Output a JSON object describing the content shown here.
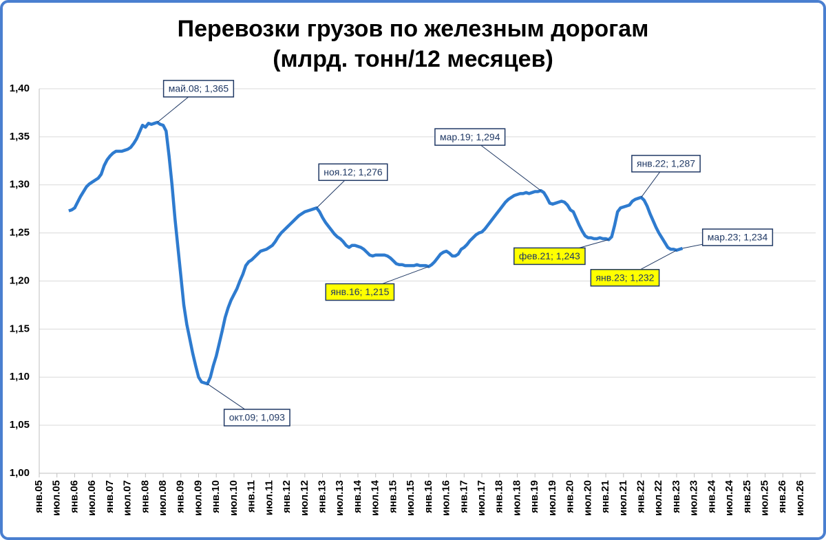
{
  "chart_data": {
    "type": "line",
    "title": "Перевозки грузов по железным дорогам",
    "subtitle": "(млрд. тонн/12 месяцев)",
    "categories": [
      "янв.05",
      null,
      null,
      null,
      null,
      null,
      "июл.05",
      null,
      null,
      null,
      null,
      null,
      "янв.06",
      null,
      null,
      null,
      null,
      null,
      "июл.06",
      null,
      null,
      null,
      null,
      null,
      "янв.07",
      null,
      null,
      null,
      null,
      null,
      "июл.07",
      null,
      null,
      null,
      null,
      null,
      "янв.08",
      null,
      null,
      null,
      null,
      null,
      "июл.08",
      null,
      null,
      null,
      null,
      null,
      "янв.09",
      null,
      null,
      null,
      null,
      null,
      "июл.09",
      null,
      null,
      null,
      null,
      null,
      "янв.10",
      null,
      null,
      null,
      null,
      null,
      "июл.10",
      null,
      null,
      null,
      null,
      null,
      "янв.11",
      null,
      null,
      null,
      null,
      null,
      "июл.11",
      null,
      null,
      null,
      null,
      null,
      "янв.12",
      null,
      null,
      null,
      null,
      null,
      "июл.12",
      null,
      null,
      null,
      null,
      null,
      "янв.13",
      null,
      null,
      null,
      null,
      null,
      "июл.13",
      null,
      null,
      null,
      null,
      null,
      "янв.14",
      null,
      null,
      null,
      null,
      null,
      "июл.14",
      null,
      null,
      null,
      null,
      null,
      "янв.15",
      null,
      null,
      null,
      null,
      null,
      "июл.15",
      null,
      null,
      null,
      null,
      null,
      "янв.16",
      null,
      null,
      null,
      null,
      null,
      "июл.16",
      null,
      null,
      null,
      null,
      null,
      "янв.17",
      null,
      null,
      null,
      null,
      null,
      "июл.17",
      null,
      null,
      null,
      null,
      null,
      "янв.18",
      null,
      null,
      null,
      null,
      null,
      "июл.18",
      null,
      null,
      null,
      null,
      null,
      "янв.19",
      null,
      null,
      null,
      null,
      null,
      "июл.19",
      null,
      null,
      null,
      null,
      null,
      "янв.20",
      null,
      null,
      null,
      null,
      null,
      "июл.20",
      null,
      null,
      null,
      null,
      null,
      "янв.21",
      null,
      null,
      null,
      null,
      null,
      "июл.21",
      null,
      null,
      null,
      null,
      null,
      "янв.22",
      null,
      null,
      null,
      null,
      null,
      "июл.22",
      null,
      null,
      null,
      null,
      null,
      "янв.23",
      null,
      null,
      null,
      null,
      null,
      "июл.23",
      null,
      null,
      null,
      null,
      null,
      "янв.24",
      null,
      null,
      null,
      null,
      null,
      "июл.24",
      null,
      null,
      null,
      null,
      null,
      "янв.25",
      null,
      null,
      null,
      null,
      null,
      "июл.25",
      null,
      null,
      null,
      null,
      null,
      "янв.26",
      null,
      null,
      null,
      null,
      null,
      "июл.26"
    ],
    "values": [
      null,
      null,
      null,
      null,
      null,
      null,
      null,
      null,
      null,
      null,
      1.273,
      1.274,
      1.276,
      1.282,
      1.288,
      1.293,
      1.298,
      1.301,
      1.303,
      1.305,
      1.307,
      1.311,
      1.32,
      1.326,
      1.33,
      1.333,
      1.335,
      1.335,
      1.335,
      1.336,
      1.337,
      1.339,
      1.343,
      1.348,
      1.355,
      1.362,
      1.36,
      1.364,
      1.363,
      1.364,
      1.365,
      1.363,
      1.362,
      1.356,
      1.33,
      1.3,
      1.265,
      1.235,
      1.205,
      1.175,
      1.155,
      1.14,
      1.125,
      1.112,
      1.1,
      1.095,
      1.094,
      1.093,
      1.1,
      1.112,
      1.122,
      1.135,
      1.148,
      1.162,
      1.172,
      1.18,
      1.186,
      1.192,
      1.2,
      1.207,
      1.216,
      1.22,
      1.222,
      1.225,
      1.228,
      1.231,
      1.232,
      1.233,
      1.235,
      1.237,
      1.241,
      1.246,
      1.25,
      1.253,
      1.256,
      1.259,
      1.262,
      1.265,
      1.268,
      1.27,
      1.272,
      1.273,
      1.274,
      1.275,
      1.276,
      1.272,
      1.266,
      1.261,
      1.257,
      1.253,
      1.249,
      1.246,
      1.244,
      1.241,
      1.237,
      1.235,
      1.237,
      1.237,
      1.236,
      1.235,
      1.233,
      1.23,
      1.227,
      1.226,
      1.227,
      1.227,
      1.227,
      1.227,
      1.226,
      1.224,
      1.221,
      1.218,
      1.217,
      1.217,
      1.216,
      1.216,
      1.216,
      1.216,
      1.217,
      1.216,
      1.216,
      1.216,
      1.215,
      1.217,
      1.22,
      1.224,
      1.228,
      1.23,
      1.231,
      1.229,
      1.226,
      1.226,
      1.228,
      1.233,
      1.235,
      1.238,
      1.242,
      1.245,
      1.248,
      1.25,
      1.251,
      1.254,
      1.258,
      1.262,
      1.266,
      1.27,
      1.274,
      1.278,
      1.282,
      1.285,
      1.287,
      1.289,
      1.29,
      1.291,
      1.291,
      1.292,
      1.291,
      1.292,
      1.293,
      1.293,
      1.294,
      1.292,
      1.287,
      1.281,
      1.28,
      1.281,
      1.282,
      1.283,
      1.282,
      1.279,
      1.274,
      1.272,
      1.265,
      1.258,
      1.252,
      1.247,
      1.245,
      1.245,
      1.244,
      1.244,
      1.245,
      1.244,
      1.244,
      1.243,
      1.246,
      1.258,
      1.272,
      1.276,
      1.277,
      1.278,
      1.279,
      1.283,
      1.285,
      1.286,
      1.287,
      1.284,
      1.278,
      1.27,
      1.263,
      1.256,
      1.25,
      1.245,
      1.24,
      1.235,
      1.233,
      1.233,
      1.232,
      1.233,
      1.234,
      null,
      null,
      null,
      null,
      null,
      null,
      null,
      null,
      null,
      null,
      null,
      null,
      null,
      null,
      null,
      null,
      null,
      null,
      null,
      null,
      null,
      null,
      null,
      null,
      null,
      null,
      null,
      null,
      null,
      null,
      null,
      null,
      null,
      null,
      null,
      null,
      null,
      null,
      null,
      null
    ],
    "value_labels": [
      null,
      null,
      null,
      null,
      null,
      null,
      null,
      null,
      null,
      null,
      null,
      null,
      null,
      null,
      null,
      null,
      null,
      null,
      null,
      null,
      null,
      null,
      null,
      null,
      null,
      null,
      null,
      null,
      null,
      null,
      null,
      null,
      null,
      null,
      null,
      null,
      null,
      null,
      null,
      null,
      "май.08; 1,365",
      null,
      null,
      null,
      null,
      null,
      null,
      null,
      null,
      null,
      null,
      null,
      null,
      null,
      null,
      null,
      null,
      "окт.09; 1,093",
      null,
      null,
      null,
      null,
      null,
      null,
      null,
      null,
      null,
      null,
      null,
      null,
      null,
      null,
      null,
      null,
      null,
      null,
      null,
      null,
      null,
      null,
      null,
      null,
      null,
      null,
      null,
      null,
      null,
      null,
      null,
      null,
      null,
      null,
      null,
      null,
      "ноя.12; 1,276",
      null,
      null,
      null,
      null,
      null,
      null,
      null,
      null,
      null,
      null,
      null,
      null,
      null,
      null,
      null,
      null,
      null,
      null,
      null,
      null,
      null,
      null,
      null,
      null,
      null,
      null,
      null,
      null,
      null,
      null,
      null,
      null,
      null,
      null,
      null,
      null,
      null,
      "янв.16; 1,215",
      null,
      null,
      null,
      null,
      null,
      null,
      null,
      null,
      null,
      null,
      null,
      null,
      null,
      null,
      null,
      null,
      null,
      null,
      null,
      null,
      null,
      null,
      null,
      null,
      null,
      null,
      null,
      null,
      null,
      null,
      null,
      null,
      null,
      null,
      null,
      null,
      null,
      "мар.19; 1,294",
      null,
      null,
      null,
      null,
      null,
      null,
      null,
      null,
      null,
      null,
      null,
      null,
      null,
      null,
      null,
      null,
      null,
      null,
      null,
      null,
      null,
      null,
      "фев.21; 1,243",
      null,
      null,
      null,
      null,
      null,
      null,
      null,
      null,
      null,
      null,
      "янв.22; 1,287",
      null,
      null,
      null,
      null,
      null,
      null,
      null,
      null,
      null,
      null,
      null,
      "янв.23; 1,232",
      null,
      "мар.23; 1,234",
      null,
      null,
      null,
      null,
      null,
      null,
      null,
      null,
      null,
      null,
      null,
      null,
      null,
      null,
      null,
      null,
      null,
      null,
      null,
      null,
      null,
      null,
      null,
      null,
      null,
      null,
      null,
      null,
      null,
      null,
      null,
      null,
      null,
      null,
      null,
      null,
      null,
      null,
      null,
      null
    ],
    "value_label_colors": [
      null,
      null,
      null,
      null,
      null,
      null,
      null,
      null,
      null,
      null,
      null,
      null,
      null,
      null,
      null,
      null,
      null,
      null,
      null,
      null,
      null,
      null,
      null,
      null,
      null,
      null,
      null,
      null,
      null,
      null,
      null,
      null,
      null,
      null,
      null,
      null,
      null,
      null,
      null,
      null,
      "#ffffff",
      null,
      null,
      null,
      null,
      null,
      null,
      null,
      null,
      null,
      null,
      null,
      null,
      null,
      null,
      null,
      null,
      "#ffffff",
      null,
      null,
      null,
      null,
      null,
      null,
      null,
      null,
      null,
      null,
      null,
      null,
      null,
      null,
      null,
      null,
      null,
      null,
      null,
      null,
      null,
      null,
      null,
      null,
      null,
      null,
      null,
      null,
      null,
      null,
      null,
      null,
      null,
      null,
      null,
      null,
      "#ffffff",
      null,
      null,
      null,
      null,
      null,
      null,
      null,
      null,
      null,
      null,
      null,
      null,
      null,
      null,
      null,
      null,
      null,
      null,
      null,
      null,
      null,
      null,
      null,
      null,
      null,
      null,
      null,
      null,
      null,
      null,
      null,
      null,
      null,
      null,
      null,
      null,
      null,
      "#ffff00",
      null,
      null,
      null,
      null,
      null,
      null,
      null,
      null,
      null,
      null,
      null,
      null,
      null,
      null,
      null,
      null,
      null,
      null,
      null,
      null,
      null,
      null,
      null,
      null,
      null,
      null,
      null,
      null,
      null,
      null,
      null,
      null,
      null,
      null,
      null,
      null,
      null,
      "#ffffff",
      null,
      null,
      null,
      null,
      null,
      null,
      null,
      null,
      null,
      null,
      null,
      null,
      null,
      null,
      null,
      null,
      null,
      null,
      null,
      null,
      null,
      null,
      "#ffff00",
      null,
      null,
      null,
      null,
      null,
      null,
      null,
      null,
      null,
      null,
      "#ffffff",
      null,
      null,
      null,
      null,
      null,
      null,
      null,
      null,
      null,
      null,
      null,
      "#ffff00",
      null,
      "#ffffff",
      null,
      null,
      null,
      null,
      null,
      null,
      null,
      null,
      null,
      null,
      null,
      null,
      null,
      null,
      null,
      null,
      null,
      null,
      null,
      null,
      null,
      null,
      null,
      null,
      null,
      null,
      null,
      null,
      null,
      null,
      null,
      null,
      null,
      null,
      null,
      null,
      null,
      null,
      null,
      null
    ],
    "color": "#2e7bcf",
    "ylim": [
      1.0,
      1.4
    ],
    "yticks": [
      {
        "value": 1.0,
        "label": "1,00"
      },
      {
        "value": 1.05,
        "label": "1,05"
      },
      {
        "value": 1.1,
        "label": "1,10"
      },
      {
        "value": 1.15,
        "label": "1,15"
      },
      {
        "value": 1.2,
        "label": "1,20"
      },
      {
        "value": 1.25,
        "label": "1,25"
      },
      {
        "value": 1.3,
        "label": "1,30"
      },
      {
        "value": 1.35,
        "label": "1,35"
      },
      {
        "value": 1.4,
        "label": "1,40"
      }
    ],
    "grid": true
  }
}
